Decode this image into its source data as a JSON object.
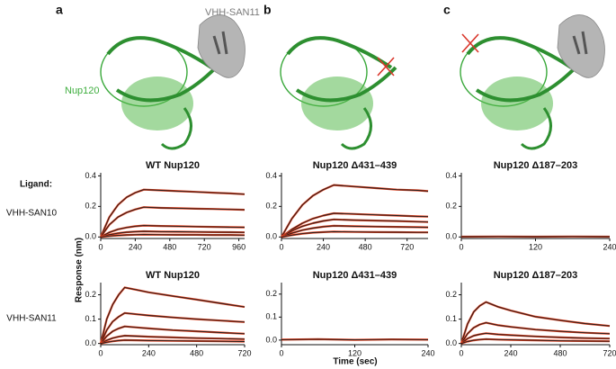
{
  "panels": [
    "a",
    "b",
    "c"
  ],
  "structure_labels": {
    "nanobody": "VHH-SAN11",
    "protein": "Nup120"
  },
  "row_header": "Ligand:",
  "row_labels": [
    "VHH-SAN10",
    "VHH-SAN11"
  ],
  "y_label": "Response (nm)",
  "x_label": "Time (sec)",
  "chart_data": [
    {
      "type": "line",
      "title": "WT Nup120",
      "fit_color": "#e0401f",
      "x": [
        0,
        60,
        120,
        180,
        240,
        300,
        420,
        540,
        660,
        780,
        900,
        1000
      ],
      "xlim": [
        0,
        1000
      ],
      "xticks": [
        0,
        240,
        480,
        720,
        960
      ],
      "ylim": [
        -0.01,
        0.42
      ],
      "yticks": [
        {
          "value": 0,
          "label": "0.0"
        },
        0.2,
        0.4
      ],
      "series": [
        {
          "color": "#1a1a1a",
          "values": [
            0,
            0.13,
            0.21,
            0.26,
            0.29,
            0.31,
            0.305,
            0.3,
            0.295,
            0.29,
            0.285,
            0.28
          ]
        },
        {
          "color": "#1a1a1a",
          "values": [
            0,
            0.08,
            0.13,
            0.16,
            0.18,
            0.195,
            0.19,
            0.188,
            0.185,
            0.183,
            0.18,
            0.178
          ]
        },
        {
          "color": "#1a1a1a",
          "values": [
            0,
            0.03,
            0.05,
            0.062,
            0.07,
            0.075,
            0.072,
            0.07,
            0.068,
            0.066,
            0.064,
            0.063
          ]
        },
        {
          "color": "#1a1a1a",
          "values": [
            0,
            0.015,
            0.025,
            0.031,
            0.035,
            0.037,
            0.035,
            0.034,
            0.033,
            0.032,
            0.031,
            0.03
          ]
        },
        {
          "color": "#1a1a1a",
          "values": [
            0,
            0.006,
            0.01,
            0.013,
            0.015,
            0.016,
            0.015,
            0.014,
            0.014,
            0.013,
            0.013,
            0.012
          ]
        }
      ]
    },
    {
      "type": "line",
      "title": "Nup120 Δ431–439",
      "fit_color": "#e0401f",
      "x": [
        0,
        60,
        120,
        180,
        240,
        300,
        420,
        540,
        660,
        780,
        840
      ],
      "xlim": [
        0,
        840
      ],
      "xticks": [
        0,
        240,
        480,
        720
      ],
      "ylim": [
        -0.01,
        0.42
      ],
      "yticks": [
        {
          "value": 0,
          "label": "0.0"
        },
        0.2,
        0.4
      ],
      "series": [
        {
          "color": "#1a1a1a",
          "values": [
            0,
            0.12,
            0.21,
            0.27,
            0.31,
            0.34,
            0.33,
            0.32,
            0.31,
            0.305,
            0.3
          ]
        },
        {
          "color": "#1a1a1a",
          "values": [
            0,
            0.05,
            0.09,
            0.12,
            0.14,
            0.155,
            0.15,
            0.145,
            0.14,
            0.135,
            0.133
          ]
        },
        {
          "color": "#1a1a1a",
          "values": [
            0,
            0.04,
            0.07,
            0.09,
            0.105,
            0.115,
            0.11,
            0.107,
            0.104,
            0.1,
            0.098
          ]
        },
        {
          "color": "#1a1a1a",
          "values": [
            0,
            0.025,
            0.045,
            0.058,
            0.067,
            0.073,
            0.07,
            0.068,
            0.066,
            0.064,
            0.063
          ]
        },
        {
          "color": "#1a1a1a",
          "values": [
            0,
            0.012,
            0.022,
            0.028,
            0.032,
            0.035,
            0.033,
            0.032,
            0.031,
            0.03,
            0.03
          ]
        }
      ]
    },
    {
      "type": "line",
      "title": "Nup120 Δ187–203",
      "fit_color": "#e0401f",
      "x": [
        0,
        60,
        120,
        180,
        240
      ],
      "xlim": [
        0,
        240
      ],
      "xticks": [
        0,
        120,
        240
      ],
      "ylim": [
        -0.01,
        0.42
      ],
      "yticks": [
        {
          "value": 0,
          "label": "0.0"
        },
        0.2,
        0.4
      ],
      "series": [
        {
          "color": "#1a1a1a",
          "values": [
            0.002,
            0.003,
            0.002,
            0.003,
            0.002
          ]
        }
      ]
    },
    {
      "type": "line",
      "title": "WT Nup120",
      "fit_color": "#e0401f",
      "x": [
        0,
        30,
        60,
        90,
        120,
        180,
        240,
        360,
        480,
        600,
        720
      ],
      "xlim": [
        0,
        720
      ],
      "xticks": [
        0,
        240,
        480,
        720
      ],
      "ylim": [
        -0.005,
        0.25
      ],
      "yticks": [
        {
          "value": 0,
          "label": "0.0"
        },
        0.1,
        0.2
      ],
      "series": [
        {
          "color": "#1a1a1a",
          "values": [
            0,
            0.1,
            0.16,
            0.2,
            0.23,
            0.22,
            0.21,
            0.195,
            0.18,
            0.165,
            0.15
          ]
        },
        {
          "color": "#1a1a1a",
          "values": [
            0,
            0.055,
            0.09,
            0.11,
            0.125,
            0.12,
            0.115,
            0.107,
            0.1,
            0.094,
            0.088
          ]
        },
        {
          "color": "#1a1a1a",
          "values": [
            0,
            0.03,
            0.05,
            0.062,
            0.07,
            0.066,
            0.062,
            0.055,
            0.05,
            0.045,
            0.04
          ]
        },
        {
          "color": "#1a1a1a",
          "values": [
            0,
            0.013,
            0.022,
            0.028,
            0.032,
            0.03,
            0.028,
            0.025,
            0.022,
            0.02,
            0.018
          ]
        },
        {
          "color": "#1a1a1a",
          "values": [
            0,
            0.005,
            0.009,
            0.012,
            0.014,
            0.013,
            0.012,
            0.011,
            0.01,
            0.009,
            0.008
          ]
        }
      ]
    },
    {
      "type": "line",
      "title": "Nup120 Δ431–439",
      "fit_color": "#e0401f",
      "x": [
        0,
        60,
        120,
        180,
        240
      ],
      "xlim": [
        0,
        240
      ],
      "xticks": [
        0,
        120,
        240
      ],
      "ylim": [
        -0.02,
        0.25
      ],
      "yticks": [
        {
          "value": 0,
          "label": "0.0"
        },
        0.1,
        0.2
      ],
      "series": [
        {
          "color": "#1a1a1a",
          "values": [
            0.002,
            0.004,
            0.001,
            0.003,
            0.002
          ]
        }
      ]
    },
    {
      "type": "line",
      "title": "Nup120 Δ187–203",
      "fit_color": "#e0401f",
      "x": [
        0,
        30,
        60,
        90,
        120,
        180,
        240,
        360,
        480,
        600,
        720
      ],
      "xlim": [
        0,
        720
      ],
      "xticks": [
        0,
        240,
        480,
        720
      ],
      "ylim": [
        -0.005,
        0.25
      ],
      "yticks": [
        {
          "value": 0,
          "label": "0.0"
        },
        0.1,
        0.2
      ],
      "series": [
        {
          "color": "#1a1a1a",
          "values": [
            0,
            0.08,
            0.13,
            0.155,
            0.17,
            0.15,
            0.135,
            0.11,
            0.095,
            0.082,
            0.072
          ]
        },
        {
          "color": "#1a1a1a",
          "values": [
            0,
            0.04,
            0.065,
            0.078,
            0.085,
            0.075,
            0.068,
            0.057,
            0.05,
            0.044,
            0.04
          ]
        },
        {
          "color": "#1a1a1a",
          "values": [
            0,
            0.02,
            0.032,
            0.038,
            0.042,
            0.037,
            0.034,
            0.029,
            0.025,
            0.022,
            0.02
          ]
        },
        {
          "color": "#1a1a1a",
          "values": [
            0,
            0.008,
            0.013,
            0.016,
            0.018,
            0.016,
            0.015,
            0.013,
            0.011,
            0.01,
            0.009
          ]
        }
      ]
    }
  ]
}
